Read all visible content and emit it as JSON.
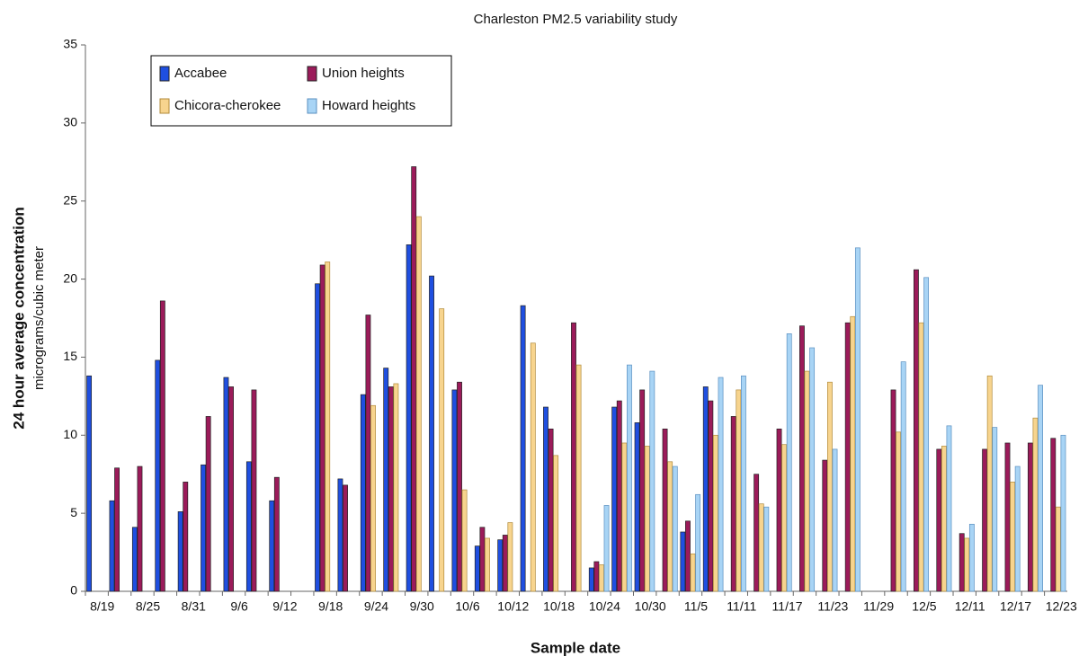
{
  "chart_data": {
    "type": "bar",
    "title": "Charleston PM2.5 variability study",
    "y_label": "24 hour average concentration",
    "y_sublabel": "micrograms/cubic meter",
    "x_label": "Sample date",
    "categories": [
      "8/19",
      null,
      "8/25",
      null,
      "8/31",
      null,
      "9/6",
      null,
      "9/12",
      null,
      "9/18",
      null,
      "9/24",
      null,
      "9/30",
      null,
      "10/6",
      null,
      "10/12",
      null,
      "10/18",
      null,
      "10/24",
      null,
      "10/30",
      null,
      "11/5",
      null,
      "11/11",
      null,
      "11/17",
      null,
      "11/23",
      null,
      "11/29",
      null,
      "12/5",
      null,
      "12/11",
      null,
      "12/17",
      null,
      "12/23"
    ],
    "series": [
      {
        "name": "Accabee",
        "color": "#1f4fe0",
        "values": [
          13.8,
          5.8,
          4.1,
          14.8,
          5.1,
          8.1,
          13.7,
          8.3,
          5.8,
          null,
          19.7,
          7.2,
          12.6,
          14.3,
          22.2,
          20.2,
          12.9,
          2.9,
          3.3,
          18.3,
          11.8,
          null,
          1.5,
          11.8,
          10.8,
          null,
          3.8,
          13.1,
          null,
          null,
          null,
          null,
          null,
          null,
          null,
          null,
          null,
          null,
          null,
          null,
          null,
          null,
          null
        ]
      },
      {
        "name": "Union heights",
        "color": "#9b1b5a",
        "values": [
          null,
          7.9,
          8.0,
          18.6,
          7.0,
          11.2,
          13.1,
          12.9,
          7.3,
          null,
          20.9,
          6.8,
          17.7,
          13.1,
          27.2,
          null,
          13.4,
          4.1,
          3.6,
          null,
          10.4,
          17.2,
          1.9,
          12.2,
          12.9,
          10.4,
          4.5,
          12.2,
          11.2,
          7.5,
          10.4,
          17.0,
          8.4,
          17.2,
          null,
          12.9,
          20.6,
          9.1,
          3.7,
          9.1,
          9.5,
          9.5,
          9.8
        ]
      },
      {
        "name": "Chicora-cherokee",
        "color": "#f7d48e",
        "values": [
          null,
          null,
          null,
          null,
          null,
          null,
          null,
          null,
          null,
          null,
          21.1,
          null,
          11.9,
          13.3,
          24.0,
          18.1,
          6.5,
          3.4,
          4.4,
          15.9,
          8.7,
          14.5,
          1.7,
          9.5,
          9.3,
          8.3,
          2.4,
          10.0,
          12.9,
          5.6,
          9.4,
          14.1,
          13.4,
          17.6,
          null,
          10.2,
          17.2,
          9.3,
          3.4,
          13.8,
          7.0,
          11.1,
          5.4
        ]
      },
      {
        "name": "Howard heights",
        "color": "#a8d4f5",
        "values": [
          null,
          null,
          null,
          null,
          null,
          null,
          null,
          null,
          null,
          null,
          null,
          null,
          null,
          null,
          null,
          null,
          null,
          null,
          null,
          null,
          null,
          null,
          5.5,
          14.5,
          14.1,
          8.0,
          6.2,
          13.7,
          13.8,
          5.4,
          16.5,
          15.6,
          9.1,
          22.0,
          null,
          14.7,
          20.1,
          10.6,
          4.3,
          10.5,
          8.0,
          13.2,
          10.0
        ]
      }
    ],
    "ylim": [
      0,
      35
    ],
    "yticks": [
      0,
      5,
      10,
      15,
      20,
      25,
      30,
      35
    ],
    "grid": false,
    "legend": "top-left"
  }
}
